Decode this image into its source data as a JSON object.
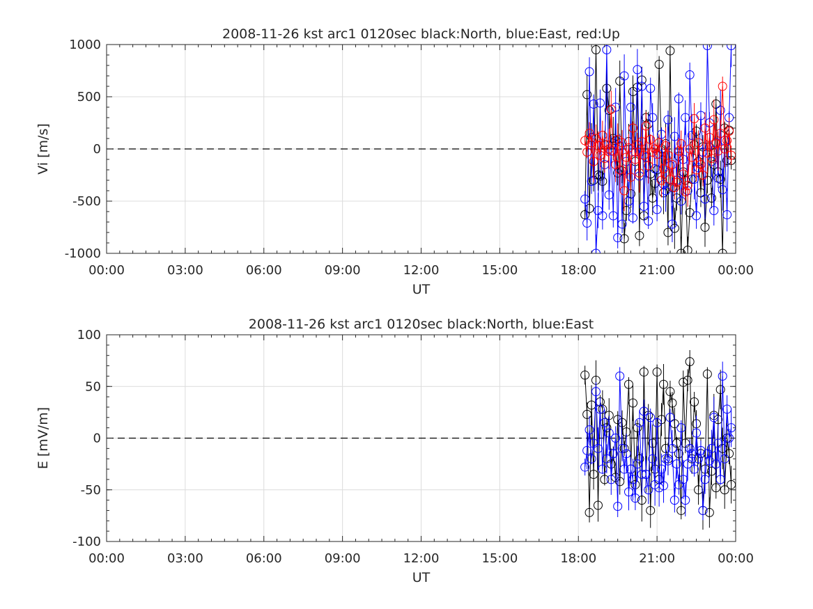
{
  "chart_data": [
    {
      "type": "line",
      "title": "2008-11-26 kst arc1 0120sec black:North, blue:East, red:Up",
      "xlabel": "UT",
      "ylabel": "Vi [m/s]",
      "xlim_hours": [
        0,
        24
      ],
      "ylim": [
        -1000,
        1000
      ],
      "xticks": [
        "00:00",
        "03:00",
        "06:00",
        "09:00",
        "12:00",
        "15:00",
        "18:00",
        "21:00",
        "00:00"
      ],
      "yticks": [
        "-1000",
        "-500",
        "0",
        "500",
        "1000"
      ],
      "grid": true,
      "reference_line": 0,
      "markers": "circle",
      "series": [
        {
          "color": "#000000",
          "x_hours": [
            18.25,
            18.33,
            18.42,
            18.5,
            18.58,
            18.67,
            18.75,
            18.83,
            18.92,
            19.0,
            19.08,
            19.17,
            19.25,
            19.33,
            19.42,
            19.5,
            19.58,
            19.67,
            19.75,
            19.83,
            19.92,
            20.0,
            20.08,
            20.17,
            20.25,
            20.33,
            20.42,
            20.5,
            20.58,
            20.67,
            20.75,
            20.83,
            20.92,
            21.0,
            21.08,
            21.17,
            21.25,
            21.33,
            21.42,
            21.5,
            21.58,
            21.67,
            21.75,
            21.83,
            21.92,
            22.0,
            22.08,
            22.17,
            22.25,
            22.33,
            22.42,
            22.5,
            22.58,
            22.67,
            22.75,
            22.83,
            22.92,
            23.0,
            23.08,
            23.17,
            23.25,
            23.33,
            23.42,
            23.5,
            23.58,
            23.67,
            23.75,
            23.83
          ],
          "values": [
            -630,
            520,
            -570,
            110,
            -300,
            950,
            -250,
            -260,
            -310,
            40,
            580,
            370,
            -20,
            100,
            80,
            -230,
            650,
            -210,
            -860,
            -590,
            70,
            -430,
            550,
            -120,
            590,
            -830,
            660,
            -640,
            300,
            240,
            -240,
            -470,
            -330,
            -200,
            810,
            0,
            -420,
            50,
            -800,
            940,
            -370,
            -760,
            -470,
            -70,
            -1000,
            -220,
            -300,
            -970,
            -610,
            -290,
            40,
            170,
            -120,
            -420,
            20,
            -750,
            -300,
            20,
            -470,
            -150,
            430,
            -220,
            -290,
            -1000,
            200,
            -110,
            180,
            -110
          ],
          "error_bars": true
        },
        {
          "color": "#0000ff",
          "x_hours": [
            18.25,
            18.33,
            18.42,
            18.5,
            18.58,
            18.67,
            18.75,
            18.83,
            18.92,
            19.0,
            19.08,
            19.17,
            19.25,
            19.33,
            19.42,
            19.5,
            19.58,
            19.67,
            19.75,
            19.83,
            19.92,
            20.0,
            20.08,
            20.17,
            20.25,
            20.33,
            20.42,
            20.5,
            20.58,
            20.67,
            20.75,
            20.83,
            20.92,
            21.0,
            21.08,
            21.17,
            21.25,
            21.33,
            21.42,
            21.5,
            21.58,
            21.67,
            21.75,
            21.83,
            21.92,
            22.0,
            22.08,
            22.17,
            22.25,
            22.33,
            22.42,
            22.5,
            22.58,
            22.67,
            22.75,
            22.83,
            22.92,
            23.0,
            23.08,
            23.17,
            23.25,
            23.33,
            23.42,
            23.5,
            23.58,
            23.67,
            23.75,
            23.83
          ],
          "values": [
            -480,
            -710,
            740,
            -310,
            430,
            -1000,
            -590,
            440,
            -640,
            -150,
            950,
            -440,
            -20,
            -640,
            400,
            -850,
            30,
            -720,
            700,
            -120,
            -500,
            400,
            -660,
            -30,
            760,
            -260,
            600,
            -550,
            -80,
            -690,
            580,
            300,
            -190,
            -580,
            -50,
            140,
            -340,
            -400,
            280,
            -160,
            -720,
            120,
            -300,
            480,
            -500,
            -100,
            300,
            -400,
            710,
            130,
            -290,
            -640,
            -180,
            320,
            -30,
            -480,
            990,
            250,
            -120,
            -590,
            60,
            -280,
            370,
            -390,
            80,
            -630,
            300,
            990
          ],
          "error_bars": true
        },
        {
          "color": "#ff0000",
          "x_hours": [
            18.25,
            18.33,
            18.42,
            18.5,
            18.58,
            18.67,
            18.75,
            18.83,
            18.92,
            19.0,
            19.08,
            19.17,
            19.25,
            19.33,
            19.42,
            19.5,
            19.58,
            19.67,
            19.75,
            19.83,
            19.92,
            20.0,
            20.08,
            20.17,
            20.25,
            20.33,
            20.42,
            20.5,
            20.58,
            20.67,
            20.75,
            20.83,
            20.92,
            21.0,
            21.08,
            21.17,
            21.25,
            21.33,
            21.42,
            21.5,
            21.58,
            21.67,
            21.75,
            21.83,
            21.92,
            22.0,
            22.08,
            22.17,
            22.25,
            22.33,
            22.42,
            22.5,
            22.58,
            22.67,
            22.75,
            22.83,
            22.92,
            23.0,
            23.08,
            23.17,
            23.25,
            23.33,
            23.42,
            23.5,
            23.58,
            23.67,
            23.75,
            23.83
          ],
          "values": [
            80,
            -30,
            150,
            60,
            -120,
            100,
            30,
            -60,
            130,
            -90,
            40,
            0,
            380,
            -20,
            -150,
            90,
            -200,
            60,
            -400,
            -80,
            10,
            -270,
            200,
            -100,
            40,
            -230,
            70,
            -60,
            220,
            -160,
            90,
            -30,
            0,
            -50,
            60,
            -300,
            -190,
            30,
            -60,
            -290,
            -150,
            -370,
            -320,
            -20,
            50,
            -240,
            -410,
            -350,
            0,
            -80,
            290,
            -200,
            60,
            -150,
            -250,
            200,
            -40,
            110,
            -90,
            280,
            50,
            -20,
            150,
            600,
            0,
            80,
            170,
            -60
          ],
          "error_bars": true
        }
      ]
    },
    {
      "type": "line",
      "title": "2008-11-26 kst arc1 0120sec black:North, blue:East",
      "xlabel": "UT",
      "ylabel": "E [mV/m]",
      "xlim_hours": [
        0,
        24
      ],
      "ylim": [
        -100,
        100
      ],
      "xticks": [
        "00:00",
        "03:00",
        "06:00",
        "09:00",
        "12:00",
        "15:00",
        "18:00",
        "21:00",
        "00:00"
      ],
      "yticks": [
        "-100",
        "-50",
        "0",
        "50",
        "100"
      ],
      "grid": true,
      "reference_line": 0,
      "markers": "circle",
      "series": [
        {
          "color": "#000000",
          "x_hours": [
            18.25,
            18.33,
            18.42,
            18.5,
            18.58,
            18.67,
            18.75,
            18.83,
            18.92,
            19.0,
            19.08,
            19.17,
            19.25,
            19.33,
            19.42,
            19.5,
            19.58,
            19.67,
            19.75,
            19.83,
            19.92,
            20.0,
            20.08,
            20.17,
            20.25,
            20.33,
            20.42,
            20.5,
            20.58,
            20.67,
            20.75,
            20.83,
            20.92,
            21.0,
            21.08,
            21.17,
            21.25,
            21.33,
            21.42,
            21.5,
            21.58,
            21.67,
            21.75,
            21.83,
            21.92,
            22.0,
            22.08,
            22.17,
            22.25,
            22.33,
            22.42,
            22.5,
            22.58,
            22.67,
            22.75,
            22.83,
            22.92,
            23.0,
            23.08,
            23.17,
            23.25,
            23.33,
            23.42,
            23.5,
            23.58,
            23.67,
            23.75,
            23.83
          ],
          "values": [
            61,
            23,
            -72,
            32,
            -35,
            56,
            -65,
            35,
            28,
            -40,
            10,
            22,
            -25,
            -15,
            -38,
            18,
            -42,
            15,
            -10,
            6,
            52,
            -30,
            34,
            -45,
            10,
            -20,
            -60,
            64,
            -35,
            22,
            -70,
            -5,
            -30,
            64,
            -40,
            18,
            52,
            -10,
            -20,
            45,
            34,
            14,
            -5,
            -15,
            -70,
            54,
            -5,
            56,
            74,
            -20,
            35,
            14,
            -50,
            -15,
            -70,
            -30,
            62,
            -72,
            -32,
            22,
            -48,
            18,
            47,
            -10,
            -50,
            0,
            -15,
            -45
          ],
          "error_bars": true
        },
        {
          "color": "#0000ff",
          "x_hours": [
            18.25,
            18.33,
            18.42,
            18.5,
            18.58,
            18.67,
            18.75,
            18.83,
            18.92,
            19.0,
            19.08,
            19.17,
            19.25,
            19.33,
            19.42,
            19.5,
            19.58,
            19.67,
            19.75,
            19.83,
            19.92,
            20.0,
            20.08,
            20.17,
            20.25,
            20.33,
            20.42,
            20.5,
            20.58,
            20.67,
            20.75,
            20.83,
            20.92,
            21.0,
            21.08,
            21.17,
            21.25,
            21.33,
            21.42,
            21.5,
            21.58,
            21.67,
            21.75,
            21.83,
            21.92,
            22.0,
            22.08,
            22.17,
            22.25,
            22.33,
            22.42,
            22.5,
            22.58,
            22.67,
            22.75,
            22.83,
            22.92,
            23.0,
            23.08,
            23.17,
            23.25,
            23.33,
            23.42,
            23.5,
            23.58,
            23.67,
            23.75,
            23.83
          ],
          "values": [
            -28,
            -12,
            8,
            -20,
            -5,
            45,
            -10,
            28,
            -30,
            15,
            -20,
            5,
            -40,
            -15,
            0,
            -66,
            60,
            -10,
            -30,
            -15,
            -52,
            -30,
            -40,
            -58,
            -25,
            15,
            -35,
            26,
            -35,
            -50,
            20,
            -20,
            -45,
            15,
            -48,
            -30,
            -46,
            -20,
            -22,
            20,
            -10,
            -60,
            -25,
            -45,
            10,
            -40,
            -60,
            -25,
            -10,
            -15,
            -30,
            5,
            -20,
            -12,
            -70,
            -40,
            -15,
            -22,
            -10,
            20,
            -25,
            -5,
            -40,
            60,
            -20,
            28,
            0,
            10
          ],
          "error_bars": true
        }
      ]
    }
  ]
}
